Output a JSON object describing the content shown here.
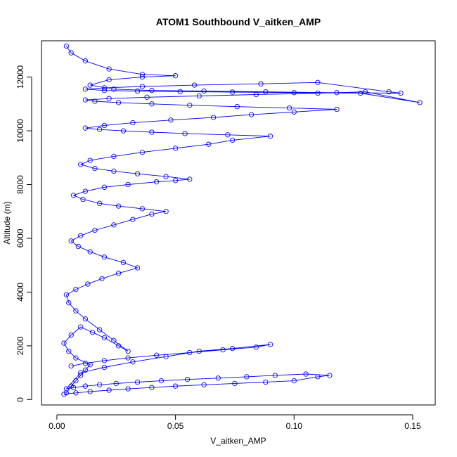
{
  "chart_data": {
    "type": "scatter",
    "title": "ATOM1 Southbound V_aitken_AMP",
    "xlabel": "V_aitken_AMP",
    "ylabel": "Altitude (m)",
    "xlim": [
      -0.0065,
      0.1595
    ],
    "ylim": [
      -200,
      13350
    ],
    "x_ticks": [
      0.0,
      0.05,
      0.1,
      0.15
    ],
    "x_tick_labels": [
      "0.00",
      "0.05",
      "0.10",
      "0.15"
    ],
    "y_ticks": [
      0,
      2000,
      4000,
      6000,
      8000,
      10000,
      12000
    ],
    "y_tick_labels": [
      "0",
      "2000",
      "4000",
      "6000",
      "8000",
      "10000",
      "12000"
    ],
    "grid": false,
    "colors": {
      "series": "#0000ff"
    },
    "series": [
      {
        "x": [
          0.004,
          0.006,
          0.008,
          0.01,
          0.012,
          0.014,
          0.008,
          0.005,
          0.003,
          0.006,
          0.01,
          0.015,
          0.02,
          0.026,
          0.03,
          0.024,
          0.018,
          0.012,
          0.008,
          0.005,
          0.004,
          0.008,
          0.013,
          0.019,
          0.026,
          0.034,
          0.028,
          0.02,
          0.014,
          0.009,
          0.006,
          0.01,
          0.016,
          0.024,
          0.032,
          0.04,
          0.046,
          0.036,
          0.026,
          0.018,
          0.011,
          0.007,
          0.012,
          0.02,
          0.03,
          0.042,
          0.05,
          0.056,
          0.046,
          0.034,
          0.024,
          0.016,
          0.01,
          0.014,
          0.024,
          0.036,
          0.05,
          0.064,
          0.074,
          0.09,
          0.072,
          0.054,
          0.04,
          0.028,
          0.018,
          0.012,
          0.02,
          0.032,
          0.048,
          0.066,
          0.082,
          0.1,
          0.118,
          0.098,
          0.076,
          0.056,
          0.04,
          0.026,
          0.016,
          0.012,
          0.022,
          0.038,
          0.06,
          0.084,
          0.11,
          0.13,
          0.153,
          0.128,
          0.1,
          0.074,
          0.052,
          0.034,
          0.02,
          0.012,
          0.02,
          0.036,
          0.058,
          0.086,
          0.11,
          0.14,
          0.145,
          0.118,
          0.088,
          0.062,
          0.04,
          0.024,
          0.014,
          0.022,
          0.036,
          0.05,
          0.036,
          0.022,
          0.012,
          0.006,
          0.004
        ],
        "y": [
          250,
          500,
          700,
          900,
          1100,
          1300,
          1550,
          1800,
          2100,
          2400,
          2700,
          2500,
          2300,
          2000,
          1800,
          2200,
          2600,
          3000,
          3300,
          3600,
          3900,
          4100,
          4300,
          4500,
          4700,
          4900,
          5100,
          5300,
          5500,
          5700,
          5900,
          6100,
          6300,
          6500,
          6700,
          6900,
          7000,
          7100,
          7200,
          7300,
          7450,
          7600,
          7750,
          7900,
          8000,
          8100,
          8150,
          8200,
          8300,
          8400,
          8500,
          8600,
          8750,
          8900,
          9050,
          9200,
          9350,
          9500,
          9650,
          9800,
          9850,
          9900,
          9950,
          10000,
          10050,
          10100,
          10200,
          10300,
          10400,
          10500,
          10600,
          10700,
          10800,
          10850,
          10900,
          10950,
          11000,
          11050,
          11100,
          11150,
          11200,
          11250,
          11300,
          11350,
          11400,
          11450,
          11050,
          11400,
          11420,
          11440,
          11460,
          11480,
          11500,
          11550,
          11600,
          11650,
          11700,
          11750,
          11800,
          11450,
          11400,
          11420,
          11450,
          11480,
          11500,
          11550,
          11700,
          11900,
          12000,
          12050,
          12100,
          12300,
          12600,
          12900,
          13150
        ]
      },
      {
        "x": [
          0.003,
          0.008,
          0.014,
          0.022,
          0.03,
          0.04,
          0.05,
          0.062,
          0.075,
          0.088,
          0.1,
          0.11,
          0.115,
          0.105,
          0.092,
          0.08,
          0.068,
          0.055,
          0.044,
          0.034,
          0.025,
          0.018,
          0.012,
          0.007,
          0.004,
          0.01,
          0.02,
          0.032,
          0.046,
          0.06,
          0.074,
          0.09,
          0.084,
          0.07,
          0.056,
          0.042,
          0.03,
          0.02,
          0.012,
          0.006
        ],
        "y": [
          200,
          250,
          300,
          350,
          400,
          450,
          500,
          550,
          600,
          650,
          700,
          850,
          900,
          950,
          900,
          850,
          800,
          750,
          700,
          650,
          600,
          550,
          500,
          450,
          400,
          1000,
          1200,
          1400,
          1600,
          1800,
          1900,
          2050,
          1950,
          1850,
          1750,
          1650,
          1550,
          1450,
          1350,
          1250
        ]
      }
    ]
  }
}
